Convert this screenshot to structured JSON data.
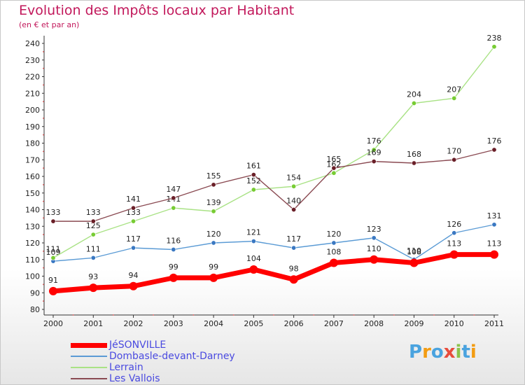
{
  "header": {
    "title": "Evolution des Impôts locaux par Habitant",
    "subtitle": "(en € et par an)"
  },
  "logo": {
    "text": "Proxiti",
    "letter_colors": [
      "#4aa3df",
      "#f39c12",
      "#4aa3df",
      "#e74c3c",
      "#8bc34a",
      "#4aa3df",
      "#f39c12"
    ]
  },
  "chart_data": {
    "type": "line",
    "title": "Evolution des Impôts locaux par Habitant",
    "subtitle": "(en € et par an)",
    "x": [
      "2000",
      "2001",
      "2002",
      "2003",
      "2004",
      "2005",
      "2006",
      "2007",
      "2008",
      "2009",
      "2010",
      "2011"
    ],
    "y_ticks": [
      "80",
      "90",
      "100",
      "110",
      "120",
      "130",
      "140",
      "150",
      "160",
      "170",
      "180",
      "190",
      "200",
      "210",
      "220",
      "230",
      "240"
    ],
    "ylim": [
      80,
      240
    ],
    "grid": false,
    "legend_position": "bottom-left",
    "series": [
      {
        "name": "Dombasle-devant-Darney",
        "color": "#5b9bd5",
        "marker": "#3a78c2",
        "values": [
          109,
          111,
          117,
          116,
          120,
          121,
          117,
          120,
          123,
          110,
          126,
          131
        ],
        "labels": [
          "109",
          "111",
          "117",
          "116",
          "120",
          "121",
          "117",
          "120",
          "123",
          "110",
          "126",
          "131"
        ]
      },
      {
        "name": "Lerrain",
        "color": "#a9e285",
        "marker": "#77cc33",
        "values": [
          111,
          125,
          133,
          141,
          139,
          152,
          154,
          162,
          176,
          204,
          207,
          238
        ],
        "labels": [
          "111",
          "125",
          "133",
          "141",
          "139",
          "152",
          "154",
          "162",
          "176",
          "204",
          "207",
          "238"
        ]
      },
      {
        "name": "Les Vallois",
        "color": "#8a4a52",
        "marker": "#6a1f28",
        "values": [
          133,
          133,
          141,
          147,
          155,
          161,
          140,
          165,
          169,
          168,
          170,
          176
        ],
        "labels": [
          "133",
          "133",
          "141",
          "147",
          "155",
          "161",
          "140",
          "165",
          "169",
          "168",
          "170",
          "176"
        ]
      },
      {
        "name": "JéSONVILLE",
        "color": "#ff0000",
        "marker": "#ff0000",
        "thick": true,
        "values": [
          91,
          93,
          94,
          99,
          99,
          104,
          98,
          108,
          110,
          108,
          113,
          113
        ],
        "labels": [
          "91",
          "93",
          "94",
          "99",
          "99",
          "104",
          "98",
          "108",
          "110",
          "108",
          "113",
          "113"
        ]
      }
    ],
    "legend": [
      "JéSONVILLE",
      "Dombasle-devant-Darney",
      "Lerrain",
      "Les Vallois"
    ]
  }
}
